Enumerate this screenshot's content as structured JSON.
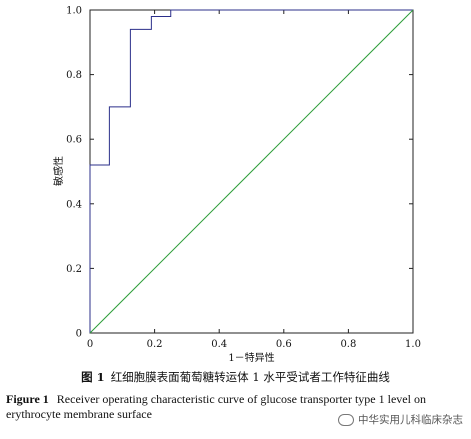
{
  "chart_data": {
    "type": "line",
    "xlabel": "1－特异性",
    "ylabel": "敏感性",
    "xlim": [
      0,
      1
    ],
    "ylim": [
      0,
      1
    ],
    "xticks": [
      "0",
      "0.2",
      "0.4",
      "0.6",
      "0.8",
      "1.0"
    ],
    "yticks": [
      "0",
      "0.2",
      "0.4",
      "0.6",
      "0.8",
      "1.0"
    ],
    "grid": false,
    "series": [
      {
        "color": "#2b2f8a",
        "step": true,
        "x": [
          0,
          0,
          0.06,
          0.06,
          0.125,
          0.125,
          0.19,
          0.19,
          0.25,
          0.25,
          1.0
        ],
        "y": [
          0,
          0.52,
          0.52,
          0.7,
          0.7,
          0.94,
          0.94,
          0.98,
          0.98,
          1.0,
          1.0
        ]
      },
      {
        "color": "#2e9e3a",
        "x": [
          0,
          1
        ],
        "y": [
          0,
          1
        ]
      }
    ]
  },
  "caption": {
    "cn_label": "图 1",
    "cn_text": "红细胞膜表面葡萄糖转运体 1 水平受试者工作特征曲线",
    "en_label": "Figure 1",
    "en_text": "Receiver operating characteristic curve of glucose transporter type 1 level on erythrocyte membrane surface"
  },
  "watermark": {
    "text": "中华实用儿科临床杂志"
  }
}
